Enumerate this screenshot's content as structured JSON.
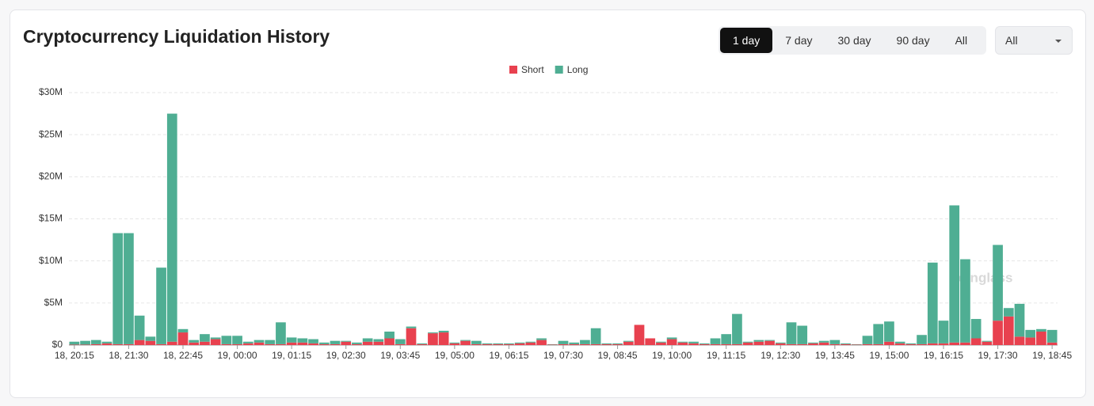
{
  "chart_data": {
    "type": "stacked_bar",
    "title": "Cryptocurrency Liquidation History",
    "categories": [
      "18, 20:15",
      null,
      null,
      null,
      null,
      "18, 21:30",
      null,
      null,
      null,
      null,
      "18, 22:45",
      null,
      null,
      null,
      null,
      "19, 00:00",
      null,
      null,
      null,
      null,
      "19, 01:15",
      null,
      null,
      null,
      null,
      "19, 02:30",
      null,
      null,
      null,
      null,
      "19, 03:45",
      null,
      null,
      null,
      null,
      "19, 05:00",
      null,
      null,
      null,
      null,
      "19, 06:15",
      null,
      null,
      null,
      null,
      "19, 07:30",
      null,
      null,
      null,
      null,
      "19, 08:45",
      null,
      null,
      null,
      null,
      "19, 10:00",
      null,
      null,
      null,
      null,
      "19, 11:15",
      null,
      null,
      null,
      null,
      "19, 12:30",
      null,
      null,
      null,
      null,
      "19, 13:45",
      null,
      null,
      null,
      null,
      "19, 15:00",
      null,
      null,
      null,
      null,
      "19, 16:15",
      null,
      null,
      null,
      null,
      "19, 17:30",
      null,
      null,
      null,
      null,
      "19, 18:45"
    ],
    "series": [
      {
        "name": "Short",
        "color": "#e8414f",
        "values": [
          0.05,
          0.05,
          0.1,
          0.2,
          0.1,
          0.1,
          0.6,
          0.5,
          0.1,
          0.4,
          1.5,
          0.3,
          0.4,
          0.7,
          0.1,
          0.1,
          0.2,
          0.3,
          0.1,
          0.1,
          0.3,
          0.3,
          0.2,
          0.1,
          0.1,
          0.4,
          0.1,
          0.4,
          0.4,
          0.8,
          0.1,
          2.0,
          0.1,
          1.4,
          1.5,
          0.2,
          0.5,
          0.1,
          0.1,
          0.1,
          0.1,
          0.2,
          0.3,
          0.6,
          0.05,
          0.1,
          0.1,
          0.1,
          0.1,
          0.1,
          0.1,
          0.4,
          2.4,
          0.8,
          0.3,
          0.7,
          0.3,
          0.2,
          0.1,
          0.1,
          0.1,
          0.1,
          0.3,
          0.4,
          0.5,
          0.2,
          0.1,
          0.1,
          0.2,
          0.3,
          0.1,
          0.1,
          0.05,
          0.1,
          0.1,
          0.4,
          0.2,
          0.1,
          0.1,
          0.2,
          0.2,
          0.3,
          0.3,
          0.8,
          0.4,
          2.9,
          3.4,
          1.0,
          0.9,
          1.6,
          0.3
        ]
      },
      {
        "name": "Long",
        "color": "#4fae93",
        "values": [
          0.35,
          0.45,
          0.5,
          0.2,
          13.2,
          13.2,
          2.9,
          0.5,
          9.1,
          27.1,
          0.4,
          0.3,
          0.9,
          0.2,
          1.0,
          1.0,
          0.2,
          0.3,
          0.5,
          2.6,
          0.6,
          0.5,
          0.5,
          0.2,
          0.4,
          0.1,
          0.2,
          0.4,
          0.3,
          0.8,
          0.6,
          0.2,
          0.1,
          0.1,
          0.2,
          0.1,
          0.1,
          0.4,
          0.1,
          0.1,
          0.1,
          0.1,
          0.1,
          0.2,
          0.05,
          0.4,
          0.2,
          0.5,
          1.9,
          0.1,
          0.1,
          0.1,
          0,
          0,
          0.1,
          0.2,
          0.1,
          0.2,
          0.1,
          0.7,
          1.2,
          3.6,
          0.1,
          0.2,
          0.1,
          0.1,
          2.6,
          2.2,
          0.1,
          0.2,
          0.5,
          0.1,
          0.05,
          1.0,
          2.4,
          2.4,
          0.2,
          0.1,
          1.1,
          9.6,
          2.7,
          16.3,
          9.9,
          2.3,
          0.1,
          9.0,
          1.0,
          3.9,
          0.9,
          0.3,
          1.5
        ]
      }
    ],
    "ylim": [
      0,
      30
    ],
    "yticks": [
      {
        "value": 0,
        "label": "$0"
      },
      {
        "value": 5,
        "label": "$5M"
      },
      {
        "value": 10,
        "label": "$10M"
      },
      {
        "value": 15,
        "label": "$15M"
      },
      {
        "value": 20,
        "label": "$20M"
      },
      {
        "value": 25,
        "label": "$25M"
      },
      {
        "value": 30,
        "label": "$30M"
      }
    ],
    "grid": true,
    "legend": "top",
    "range_buttons": [
      "1 day",
      "7 day",
      "30 day",
      "90 day",
      "All"
    ],
    "dropdown": "All",
    "watermark": "coinglass"
  }
}
